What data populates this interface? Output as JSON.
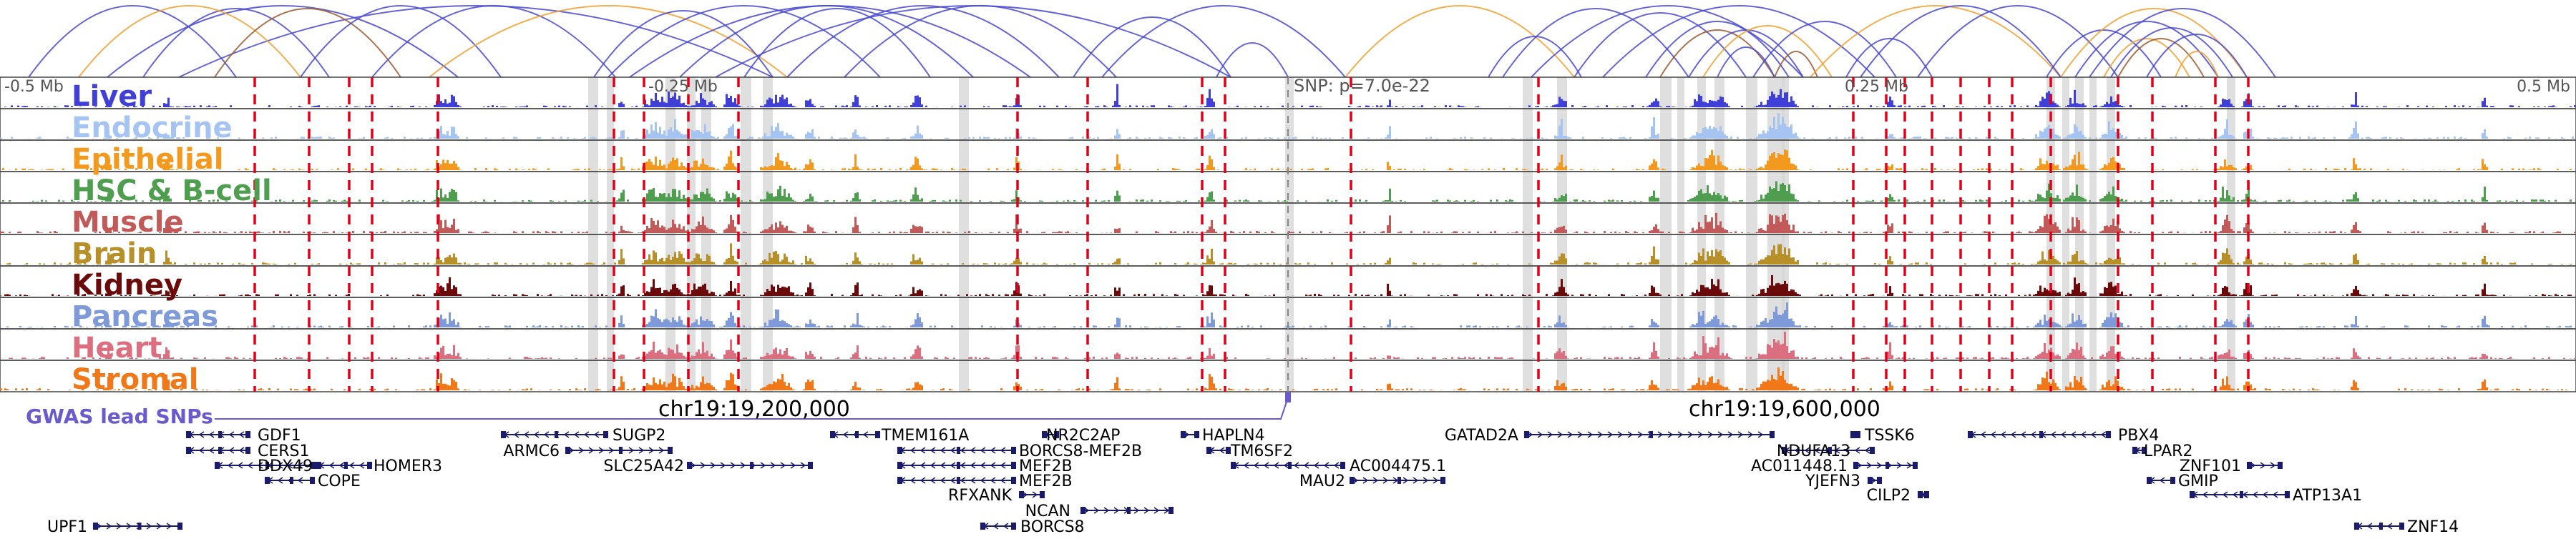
{
  "axis": {
    "left_label": "-0.5 Mb",
    "mid_left_label": "-0.25 Mb",
    "snp_label": "SNP: p=7.0e-22",
    "mid_right_label": "0.25 Mb",
    "right_label": "0.5 Mb"
  },
  "tracks": [
    {
      "label": "Liver",
      "color": "#4040d8"
    },
    {
      "label": "Endocrine",
      "color": "#a6c4f2"
    },
    {
      "label": "Epithelial",
      "color": "#f39a1e"
    },
    {
      "label": "HSC & B-cell",
      "color": "#4f9e4f"
    },
    {
      "label": "Muscle",
      "color": "#c25a5a"
    },
    {
      "label": "Brain",
      "color": "#b8902a"
    },
    {
      "label": "Kidney",
      "color": "#6a0a0a"
    },
    {
      "label": "Pancreas",
      "color": "#7f9ad8"
    },
    {
      "label": "Heart",
      "color": "#dc6f7f"
    },
    {
      "label": "Stromal",
      "color": "#f07818"
    }
  ],
  "gwas_label": "GWAS lead SNPs",
  "chrom_labels": [
    "chr19:19,200,000",
    "chr19:19,600,000"
  ],
  "genes": [
    "GDF1",
    "CERS1",
    "DDX49",
    "HOMER3",
    "COPE",
    "UPF1",
    "SUGP2",
    "ARMC6",
    "SLC25A42",
    "TMEM161A",
    "NR2C2AP",
    "BORCS8-MEF2B",
    "MEF2B",
    "MEF2B",
    "RFXANK",
    "NCAN",
    "BORCS8",
    "HAPLN4",
    "TM6SF2",
    "AC004475.1",
    "MAU2",
    "GATAD2A",
    "TSSK6",
    "NDUFA13",
    "AC011448.1",
    "YJEFN3",
    "CILP2",
    "PBX4",
    "LPAR2",
    "ZNF101",
    "GMIP",
    "ATP13A1",
    "ZNF14"
  ],
  "colors": {
    "loop_blue": "#4a4ad0",
    "loop_orange": "#f0a030",
    "loop_brown": "#9a5a30",
    "gene_navy": "#1b1b6b",
    "gwas_purple": "#6a5acd",
    "snp_red": "#e0001a",
    "highlight_gray": "#d4d4d4"
  }
}
